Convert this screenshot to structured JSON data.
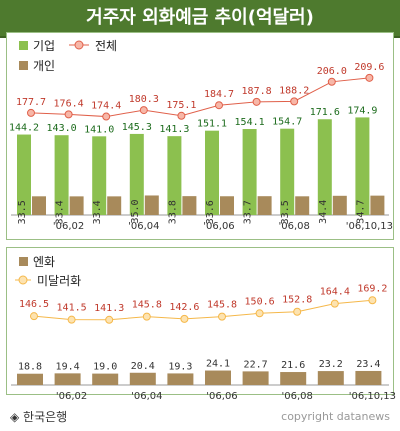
{
  "title": "거주자 외화예금 추이(억달러)",
  "footer": {
    "source": "◈ 한국은행",
    "copyright": "copyright datanews"
  },
  "chart_data": [
    {
      "type": "bar",
      "categories": [
        "",
        "'06,02",
        "",
        "'06,04",
        "",
        "'06,06",
        "",
        "'06,08",
        "",
        "'06,10,13"
      ],
      "legend": [
        "기업",
        "개인",
        "전체"
      ],
      "series": [
        {
          "name": "기업",
          "values": [
            144.2,
            143.0,
            141.0,
            145.3,
            141.3,
            151.1,
            154.1,
            154.7,
            171.6,
            174.9
          ],
          "color": "#8cc04f"
        },
        {
          "name": "개인",
          "values": [
            33.5,
            33.4,
            33.4,
            35.0,
            33.8,
            33.6,
            33.7,
            33.5,
            34.4,
            34.7
          ],
          "color": "#a88a5b"
        },
        {
          "name": "전체",
          "values": [
            177.7,
            176.4,
            174.4,
            180.3,
            175.1,
            184.7,
            187.8,
            188.2,
            206.0,
            209.6
          ],
          "color": "#e0604a",
          "type": "line"
        }
      ]
    },
    {
      "type": "bar",
      "categories": [
        "",
        "'06,02",
        "",
        "'06,04",
        "",
        "'06,06",
        "",
        "'06,08",
        "",
        "'06,10,13"
      ],
      "legend": [
        "엔화",
        "미달러화"
      ],
      "series": [
        {
          "name": "엔화",
          "values": [
            18.8,
            19.4,
            19.0,
            20.4,
            19.3,
            24.1,
            22.7,
            21.6,
            23.2,
            23.4
          ],
          "color": "#a88a5b"
        },
        {
          "name": "미달러화",
          "values": [
            146.5,
            141.5,
            141.3,
            145.8,
            142.6,
            145.8,
            150.6,
            152.8,
            164.4,
            169.2
          ],
          "color": "#f5b84a",
          "type": "line"
        }
      ]
    }
  ]
}
